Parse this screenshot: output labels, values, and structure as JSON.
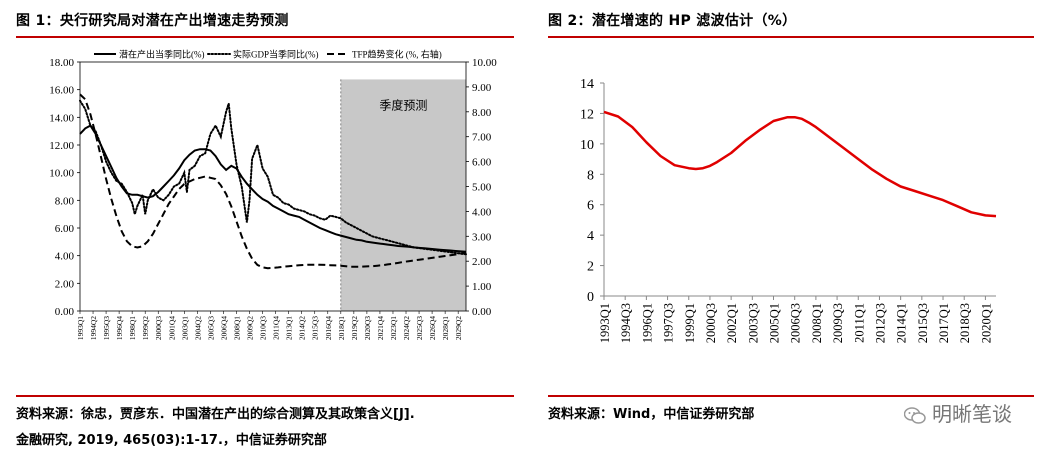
{
  "panel1": {
    "title": "图 1：央行研究局对潜在产出增速走势预测",
    "source_line1": "资料来源：徐忠，贾彦东．中国潜在产出的综合测算及其政策含义[J].",
    "source_line2": "金融研究, 2019, 465(03):1-17.，中信证券研究部"
  },
  "panel2": {
    "title": "图 2：潜在增速的 HP 滤波估计（%）",
    "source": "资料来源：Wind，中信证券研究部"
  },
  "watermark": {
    "text": "明晰笔谈",
    "icon": "wechat-icon"
  },
  "colors": {
    "accent_rule": "#c00000",
    "hp_line": "#e00000",
    "forecast_shade": "#c8c8c8"
  },
  "chart_data": [
    {
      "type": "line",
      "title": "",
      "x_tick_labels": [
        "1993Q1",
        "1994Q2",
        "1995Q3",
        "1996Q4",
        "1998Q1",
        "1999Q2",
        "2000Q3",
        "2001Q4",
        "2003Q1",
        "2004Q2",
        "2005Q3",
        "2006Q4",
        "2008Q1",
        "2009Q2",
        "2010Q3",
        "2011Q4",
        "2013Q1",
        "2014Q2",
        "2015Q3",
        "2016Q4",
        "2018Q1",
        "2019Q2",
        "2020Q3",
        "2021Q4",
        "2023Q1",
        "2024Q2",
        "2025Q3",
        "2026Q4",
        "2028Q1",
        "2029Q2"
      ],
      "y_left": {
        "ylim": [
          0,
          18
        ],
        "ticks": [
          "0.00",
          "2.00",
          "4.00",
          "6.00",
          "8.00",
          "10.00",
          "12.00",
          "14.00",
          "16.00",
          "18.00"
        ]
      },
      "y_right": {
        "ylim": [
          0,
          10
        ],
        "ticks": [
          "0.00",
          "1.00",
          "2.00",
          "3.00",
          "4.00",
          "5.00",
          "6.00",
          "7.00",
          "8.00",
          "9.00",
          "10.00"
        ]
      },
      "annotation": "季度预测",
      "forecast_start": "2018Q1",
      "series": [
        {
          "name": "潜在产出当季同比(%)",
          "axis": "left",
          "style": "solid",
          "x": [
            1993.0,
            1993.5,
            1994.0,
            1994.5,
            1995.0,
            1995.5,
            1996.0,
            1996.5,
            1997.0,
            1997.5,
            1998.0,
            1998.5,
            1999.0,
            1999.5,
            2000.0,
            2000.5,
            2001.0,
            2001.5,
            2002.0,
            2002.5,
            2003.0,
            2003.5,
            2004.0,
            2004.5,
            2005.0,
            2005.5,
            2006.0,
            2006.5,
            2007.0,
            2007.5,
            2008.0,
            2008.5,
            2009.0,
            2009.5,
            2010.0,
            2010.5,
            2011.0,
            2011.5,
            2012.0,
            2012.5,
            2013.0,
            2013.5,
            2014.0,
            2014.5,
            2015.0,
            2015.5,
            2016.0,
            2016.5,
            2017.0,
            2017.5,
            2018.0,
            2018.5,
            2019.0,
            2019.5,
            2020.0,
            2020.5,
            2021.0,
            2021.5,
            2022.0,
            2022.5,
            2023.0,
            2023.5,
            2024.0,
            2024.5,
            2025.0,
            2025.5,
            2026.0,
            2026.5,
            2027.0,
            2027.5,
            2028.0,
            2028.5,
            2029.0,
            2029.5,
            2030.0
          ],
          "values": [
            12.8,
            13.2,
            13.4,
            12.8,
            12.0,
            11.2,
            10.4,
            9.6,
            9.0,
            8.5,
            8.4,
            8.4,
            8.3,
            8.2,
            8.3,
            8.6,
            9.0,
            9.4,
            9.8,
            10.3,
            10.9,
            11.3,
            11.6,
            11.7,
            11.7,
            11.6,
            11.2,
            10.6,
            10.2,
            10.5,
            10.3,
            9.7,
            9.2,
            8.8,
            8.4,
            8.1,
            7.9,
            7.6,
            7.4,
            7.2,
            7.0,
            6.9,
            6.8,
            6.6,
            6.4,
            6.2,
            6.0,
            5.85,
            5.7,
            5.55,
            5.45,
            5.35,
            5.25,
            5.15,
            5.1,
            5.0,
            4.95,
            4.9,
            4.85,
            4.8,
            4.75,
            4.7,
            4.67,
            4.64,
            4.6,
            4.56,
            4.53,
            4.5,
            4.47,
            4.43,
            4.4,
            4.37,
            4.34,
            4.31,
            4.28
          ]
        },
        {
          "name": "实际GDP当季同比(%)",
          "axis": "left",
          "style": "dotted",
          "x": [
            1993.0,
            1993.5,
            1994.0,
            1994.5,
            1995.0,
            1995.5,
            1996.0,
            1996.5,
            1997.0,
            1997.5,
            1998.0,
            1998.25,
            1998.5,
            1999.0,
            1999.25,
            1999.5,
            2000.0,
            2000.5,
            2001.0,
            2001.5,
            2002.0,
            2002.5,
            2003.0,
            2003.25,
            2003.5,
            2004.0,
            2004.5,
            2005.0,
            2005.5,
            2006.0,
            2006.5,
            2007.0,
            2007.25,
            2007.5,
            2008.0,
            2008.5,
            2009.0,
            2009.25,
            2009.5,
            2010.0,
            2010.5,
            2011.0,
            2011.5,
            2012.0,
            2012.5,
            2013.0,
            2013.5,
            2014.0,
            2014.5,
            2015.0,
            2015.5,
            2016.0,
            2016.5,
            2017.0,
            2017.5,
            2018.0,
            2018.5,
            2019.0,
            2019.5,
            2020.0,
            2020.5,
            2021.0,
            2021.5,
            2022.0,
            2022.5,
            2023.0,
            2023.5,
            2024.0,
            2024.5,
            2025.0,
            2025.5,
            2026.0,
            2026.5,
            2027.0,
            2027.5,
            2028.0,
            2028.5,
            2029.0,
            2029.5,
            2030.0
          ],
          "values": [
            15.2,
            14.6,
            13.4,
            13.0,
            12.0,
            10.8,
            10.0,
            9.4,
            9.2,
            8.6,
            7.8,
            7.0,
            7.6,
            8.4,
            7.0,
            8.0,
            8.8,
            8.2,
            8.0,
            8.4,
            9.0,
            9.2,
            10.0,
            8.6,
            10.2,
            10.5,
            11.2,
            11.4,
            12.8,
            13.4,
            12.6,
            14.4,
            15.0,
            13.2,
            10.6,
            9.0,
            6.4,
            8.0,
            11.0,
            12.0,
            10.3,
            9.7,
            8.4,
            8.2,
            7.8,
            7.7,
            7.4,
            7.3,
            7.2,
            7.0,
            6.9,
            6.7,
            6.6,
            6.9,
            6.8,
            6.7,
            6.4,
            6.2,
            6.0,
            5.8,
            5.6,
            5.4,
            5.3,
            5.2,
            5.1,
            5.0,
            4.9,
            4.8,
            4.7,
            4.6,
            4.55,
            4.5,
            4.45,
            4.4,
            4.35,
            4.3,
            4.25,
            4.2,
            4.15,
            4.1
          ]
        },
        {
          "name": "TFP趋势变化 (%, 右轴)",
          "axis": "right",
          "style": "dashed",
          "x": [
            1993.0,
            1993.5,
            1994.0,
            1994.5,
            1995.0,
            1995.5,
            1996.0,
            1996.5,
            1997.0,
            1997.5,
            1998.0,
            1998.5,
            1999.0,
            1999.5,
            2000.0,
            2000.5,
            2001.0,
            2001.5,
            2002.0,
            2002.5,
            2003.0,
            2003.5,
            2004.0,
            2004.5,
            2005.0,
            2005.5,
            2006.0,
            2006.5,
            2007.0,
            2007.5,
            2008.0,
            2008.5,
            2009.0,
            2009.5,
            2010.0,
            2010.5,
            2011.0,
            2011.5,
            2012.0,
            2012.5,
            2013.0,
            2013.5,
            2014.0,
            2014.5,
            2015.0,
            2015.5,
            2016.0,
            2016.5,
            2017.0,
            2017.5,
            2018.0,
            2018.5,
            2019.0,
            2019.5,
            2020.0,
            2020.5,
            2021.0,
            2021.5,
            2022.0,
            2022.5,
            2023.0,
            2023.5,
            2024.0,
            2024.5,
            2025.0,
            2025.5,
            2026.0,
            2026.5,
            2027.0,
            2027.5,
            2028.0,
            2028.5,
            2029.0,
            2029.5,
            2030.0
          ],
          "values": [
            8.7,
            8.5,
            7.9,
            7.1,
            6.2,
            5.3,
            4.5,
            3.8,
            3.2,
            2.8,
            2.6,
            2.55,
            2.6,
            2.8,
            3.1,
            3.5,
            3.9,
            4.3,
            4.6,
            4.9,
            5.1,
            5.2,
            5.3,
            5.35,
            5.4,
            5.35,
            5.3,
            5.05,
            4.7,
            4.2,
            3.6,
            3.0,
            2.5,
            2.1,
            1.85,
            1.75,
            1.72,
            1.73,
            1.75,
            1.78,
            1.8,
            1.82,
            1.84,
            1.85,
            1.86,
            1.86,
            1.86,
            1.85,
            1.84,
            1.83,
            1.82,
            1.8,
            1.78,
            1.78,
            1.78,
            1.79,
            1.8,
            1.82,
            1.84,
            1.87,
            1.9,
            1.93,
            1.97,
            2.0,
            2.03,
            2.06,
            2.09,
            2.12,
            2.15,
            2.18,
            2.21,
            2.24,
            2.27,
            2.3,
            2.33
          ]
        }
      ]
    },
    {
      "type": "line",
      "title": "",
      "x_tick_labels": [
        "1993Q1",
        "1994Q3",
        "1996Q1",
        "1997Q3",
        "1999Q1",
        "2000Q3",
        "2002Q1",
        "2003Q3",
        "2005Q1",
        "2006Q3",
        "2008Q1",
        "2009Q3",
        "2011Q1",
        "2012Q3",
        "2014Q1",
        "2015Q3",
        "2017Q1",
        "2018Q3",
        "2020Q1"
      ],
      "ylim": [
        0,
        14
      ],
      "y_ticks": [
        "0",
        "2",
        "4",
        "6",
        "8",
        "10",
        "12",
        "14"
      ],
      "series": [
        {
          "name": "",
          "x": [
            1993.0,
            1994.0,
            1995.0,
            1996.0,
            1997.0,
            1998.0,
            1999.0,
            1999.5,
            2000.0,
            2000.5,
            2001.0,
            2002.0,
            2003.0,
            2004.0,
            2005.0,
            2006.0,
            2006.5,
            2007.0,
            2007.5,
            2008.0,
            2009.0,
            2010.0,
            2011.0,
            2012.0,
            2013.0,
            2014.0,
            2015.0,
            2016.0,
            2017.0,
            2018.0,
            2019.0,
            2020.0,
            2020.75
          ],
          "values": [
            12.1,
            11.8,
            11.1,
            10.1,
            9.2,
            8.6,
            8.4,
            8.35,
            8.4,
            8.55,
            8.8,
            9.4,
            10.2,
            10.9,
            11.5,
            11.75,
            11.75,
            11.65,
            11.4,
            11.1,
            10.4,
            9.7,
            9.0,
            8.3,
            7.7,
            7.2,
            6.9,
            6.6,
            6.3,
            5.9,
            5.5,
            5.3,
            5.25
          ]
        }
      ]
    }
  ]
}
